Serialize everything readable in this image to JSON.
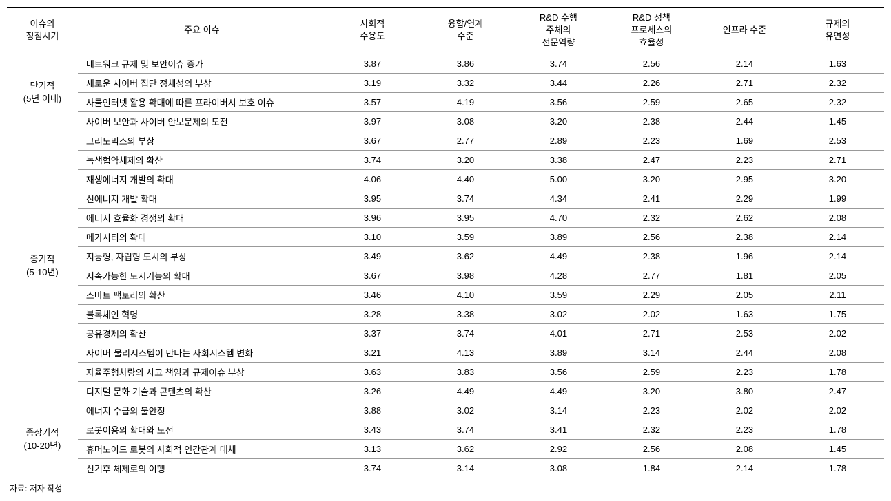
{
  "columns": {
    "period": "이슈의\n정점시기",
    "issue": "주요 이슈",
    "c1": "사회적\n수용도",
    "c2": "융합/연계\n수준",
    "c3": "R&D 수행\n주체의\n전문역량",
    "c4": "R&D 정책\n프로세스의\n효율성",
    "c5": "인프라 수준",
    "c6": "규제의\n유연성"
  },
  "groups": [
    {
      "label": "단기적\n(5년 이내)",
      "rows": [
        {
          "issue": "네트워크 규제 및 보안이슈 증가",
          "v": [
            "3.87",
            "3.86",
            "3.74",
            "2.56",
            "2.14",
            "1.63"
          ]
        },
        {
          "issue": "새로운 사이버 집단 정체성의 부상",
          "v": [
            "3.19",
            "3.32",
            "3.44",
            "2.26",
            "2.71",
            "2.32"
          ]
        },
        {
          "issue": "사물인터넷 활용 확대에 따른 프라이버시 보호 이슈",
          "v": [
            "3.57",
            "4.19",
            "3.56",
            "2.59",
            "2.65",
            "2.32"
          ]
        },
        {
          "issue": "사이버 보안과 사이버 안보문제의 도전",
          "v": [
            "3.97",
            "3.08",
            "3.20",
            "2.38",
            "2.44",
            "1.45"
          ]
        }
      ]
    },
    {
      "label": "중기적\n(5-10년)",
      "rows": [
        {
          "issue": "그리노믹스의 부상",
          "v": [
            "3.67",
            "2.77",
            "2.89",
            "2.23",
            "1.69",
            "2.53"
          ]
        },
        {
          "issue": "녹색협약체제의 확산",
          "v": [
            "3.74",
            "3.20",
            "3.38",
            "2.47",
            "2.23",
            "2.71"
          ]
        },
        {
          "issue": "재생에너지 개발의 확대",
          "v": [
            "4.06",
            "4.40",
            "5.00",
            "3.20",
            "2.95",
            "3.20"
          ]
        },
        {
          "issue": "신에너지 개발 확대",
          "v": [
            "3.95",
            "3.74",
            "4.34",
            "2.41",
            "2.29",
            "1.99"
          ]
        },
        {
          "issue": "에너지 효율화 경쟁의 확대",
          "v": [
            "3.96",
            "3.95",
            "4.70",
            "2.32",
            "2.62",
            "2.08"
          ]
        },
        {
          "issue": "메가시티의 확대",
          "v": [
            "3.10",
            "3.59",
            "3.89",
            "2.56",
            "2.38",
            "2.14"
          ]
        },
        {
          "issue": "지능형, 자립형 도시의 부상",
          "v": [
            "3.49",
            "3.62",
            "4.49",
            "2.38",
            "1.96",
            "2.14"
          ]
        },
        {
          "issue": "지속가능한 도시기능의 확대",
          "v": [
            "3.67",
            "3.98",
            "4.28",
            "2.77",
            "1.81",
            "2.05"
          ]
        },
        {
          "issue": "스마트 팩토리의 확산",
          "v": [
            "3.46",
            "4.10",
            "3.59",
            "2.29",
            "2.05",
            "2.11"
          ]
        },
        {
          "issue": "블록체인 혁명",
          "v": [
            "3.28",
            "3.38",
            "3.02",
            "2.02",
            "1.63",
            "1.75"
          ]
        },
        {
          "issue": "공유경제의 확산",
          "v": [
            "3.37",
            "3.74",
            "4.01",
            "2.71",
            "2.53",
            "2.02"
          ]
        },
        {
          "issue": "사이버-물리시스템이 만나는 사회시스템 변화",
          "v": [
            "3.21",
            "4.13",
            "3.89",
            "3.14",
            "2.44",
            "2.08"
          ]
        },
        {
          "issue": "자율주행차량의 사고 책임과 규제이슈 부상",
          "v": [
            "3.63",
            "3.83",
            "3.56",
            "2.59",
            "2.23",
            "1.78"
          ]
        },
        {
          "issue": "디지털 문화 기술과 콘텐츠의 확산",
          "v": [
            "3.26",
            "4.49",
            "4.49",
            "3.20",
            "3.80",
            "2.47"
          ]
        }
      ]
    },
    {
      "label": "중장기적\n(10-20년)",
      "rows": [
        {
          "issue": "에너지 수급의 불안정",
          "v": [
            "3.88",
            "3.02",
            "3.14",
            "2.23",
            "2.02",
            "2.02"
          ]
        },
        {
          "issue": "로봇이용의 확대와 도전",
          "v": [
            "3.43",
            "3.74",
            "3.41",
            "2.32",
            "2.23",
            "1.78"
          ]
        },
        {
          "issue": "휴머노이드 로봇의 사회적 인간관계 대체",
          "v": [
            "3.13",
            "3.62",
            "2.92",
            "2.56",
            "2.08",
            "1.45"
          ]
        },
        {
          "issue": "신기후 체제로의 이행",
          "v": [
            "3.74",
            "3.14",
            "3.08",
            "1.84",
            "2.14",
            "1.78"
          ]
        }
      ]
    }
  ],
  "footnote": "자료: 저자 작성",
  "styling": {
    "font_family": "Malgun Gothic",
    "base_font_size": 13,
    "footnote_font_size": 12,
    "text_color": "#000000",
    "background_color": "#ffffff",
    "thick_border_color": "#000000",
    "thin_border_color": "#999999",
    "thick_border_width": 1.5,
    "thin_border_width": 0.5,
    "column_widths_pct": {
      "period": 8,
      "issue": 28,
      "value": 10.5
    }
  }
}
